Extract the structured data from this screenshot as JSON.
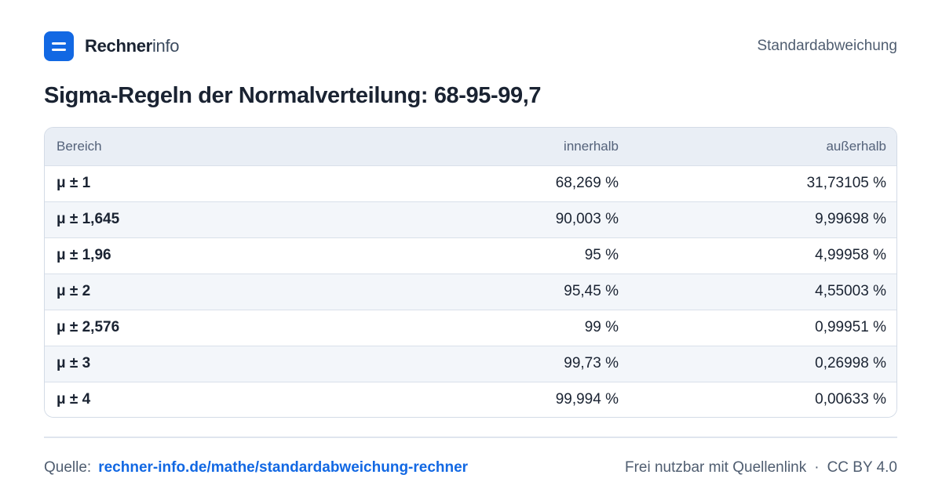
{
  "brand": {
    "name_strong": "Rechner",
    "name_light": "info",
    "logo_icon": "rechnerinfo-logo-icon",
    "accent": "#1268e3"
  },
  "header": {
    "topic": "Standardabweichung"
  },
  "page": {
    "title": "Sigma-Regeln der Normalverteilung: 68-95-99,7"
  },
  "table": {
    "columns": [
      "Bereich",
      "innerhalb",
      "außerhalb"
    ],
    "rows": [
      [
        "μ ± 1",
        "68,269 %",
        "31,73105 %"
      ],
      [
        "μ ± 1,645",
        "90,003 %",
        "9,99698 %"
      ],
      [
        "μ ± 1,96",
        "95 %",
        "4,99958 %"
      ],
      [
        "μ ± 2",
        "95,45 %",
        "4,55003 %"
      ],
      [
        "μ ± 2,576",
        "99 %",
        "0,99951 %"
      ],
      [
        "μ ± 3",
        "99,73 %",
        "0,26998 %"
      ],
      [
        "μ ± 4",
        "99,994 %",
        "0,00633 %"
      ]
    ]
  },
  "footer": {
    "source_label": "Quelle:",
    "source_link": "rechner-info.de/mathe/standardabweichung-rechner",
    "usage": "Frei nutzbar mit Quellenlink",
    "separator": "·",
    "license": "CC BY 4.0"
  }
}
